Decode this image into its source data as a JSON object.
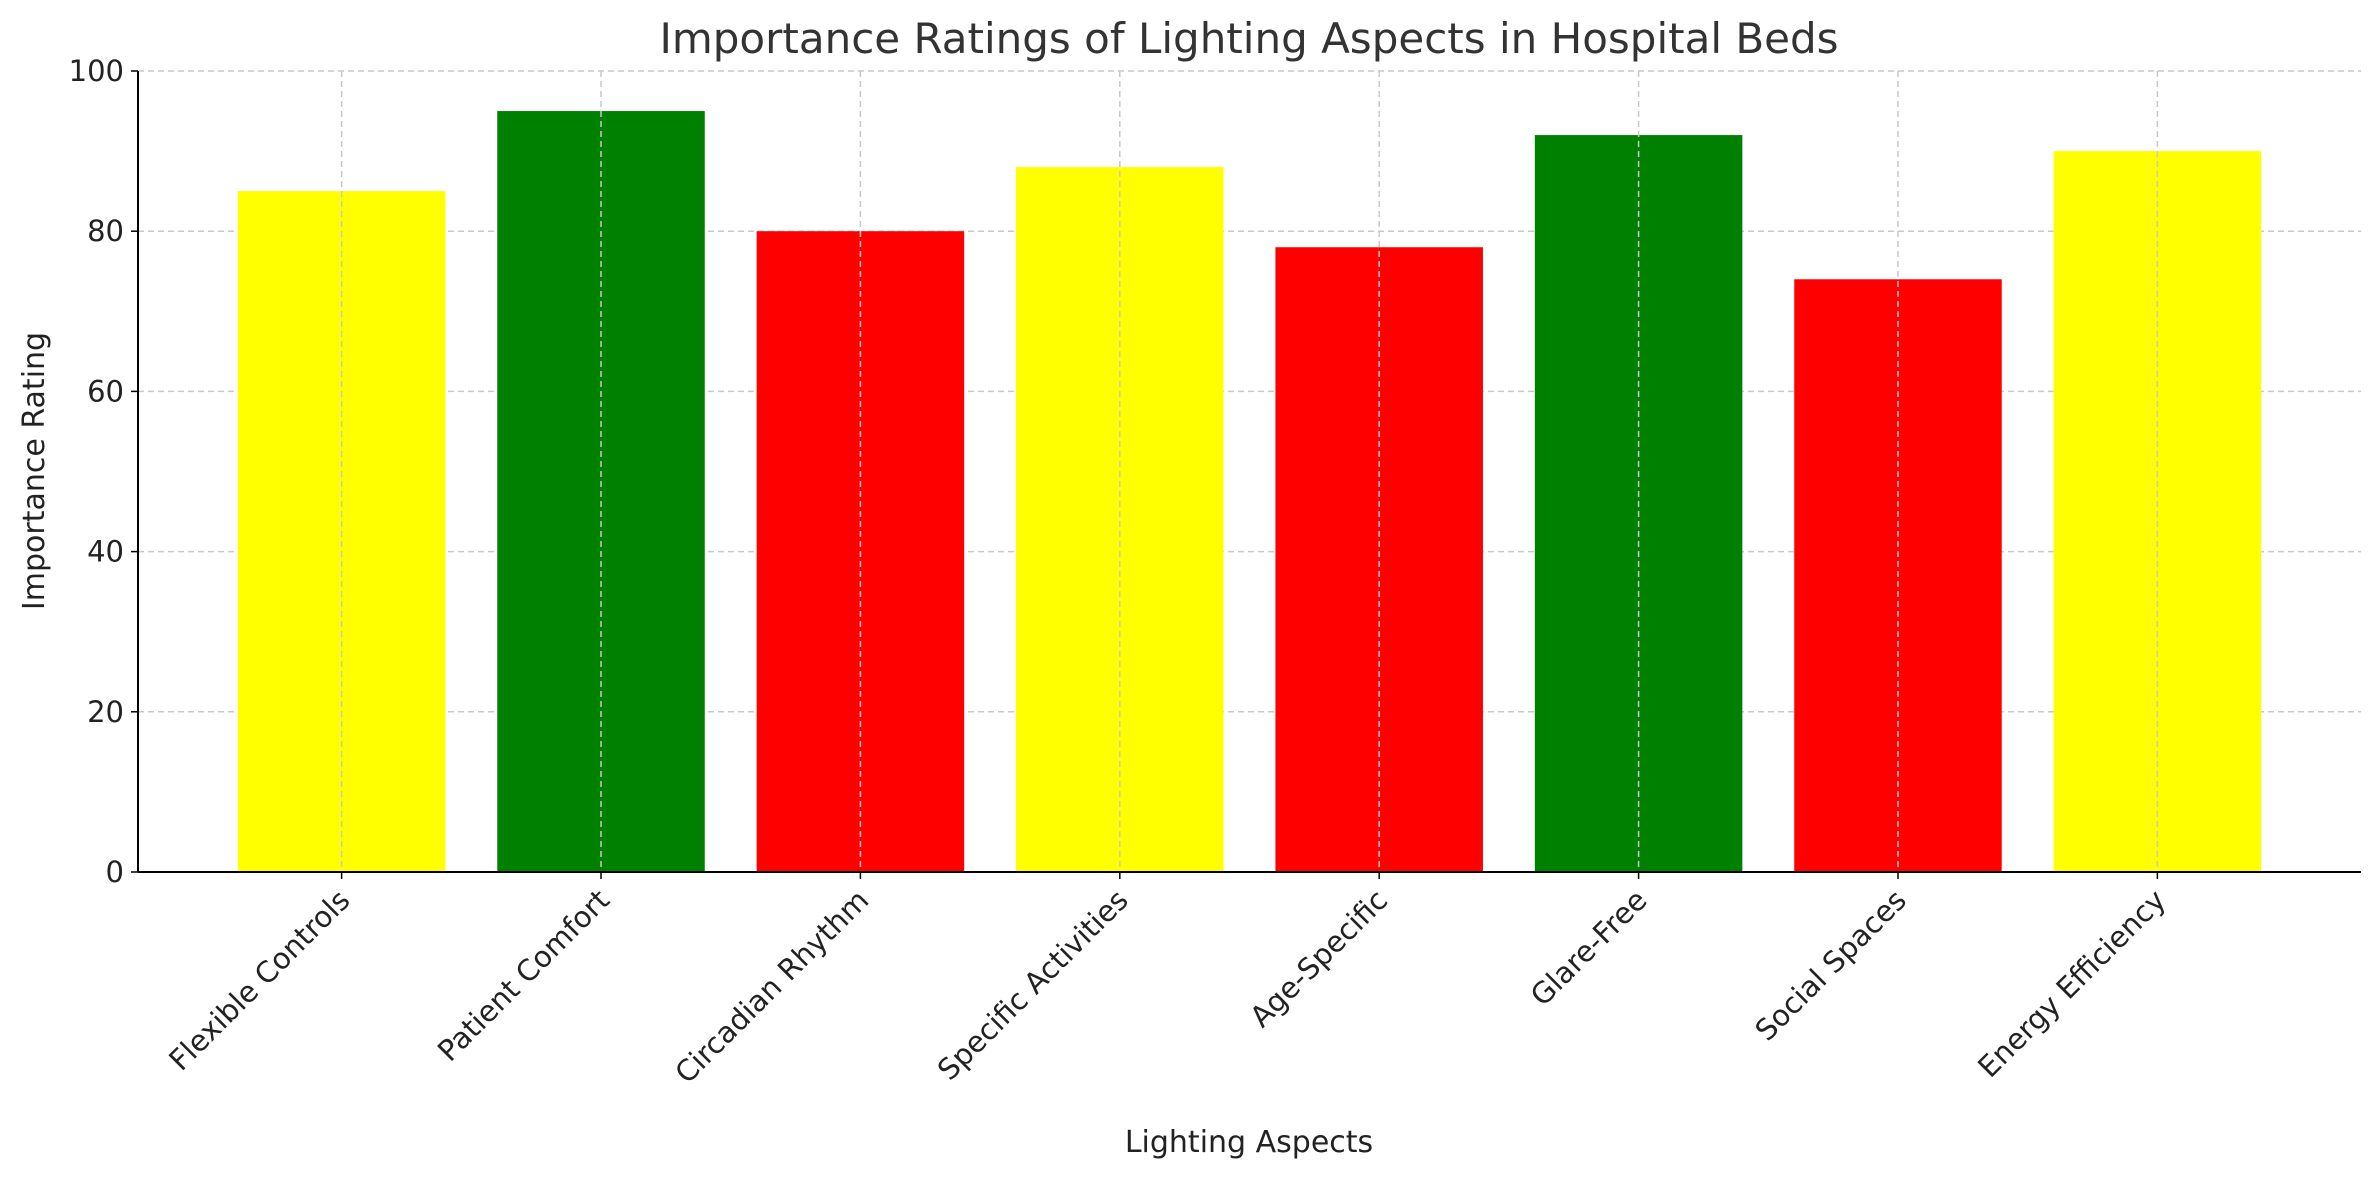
{
  "chart_data": {
    "type": "bar",
    "title": "Importance Ratings of Lighting Aspects in Hospital Beds",
    "xlabel": "Lighting Aspects",
    "ylabel": "Importance Rating",
    "categories": [
      "Flexible Controls",
      "Patient Comfort",
      "Circadian Rhythm",
      "Specific Activities",
      "Age-Specific",
      "Glare-Free",
      "Social Spaces",
      "Energy Efficiency"
    ],
    "values": [
      85,
      95,
      80,
      88,
      78,
      92,
      74,
      90
    ],
    "colors": [
      "#ffff00",
      "#008000",
      "#ff0000",
      "#ffff00",
      "#ff0000",
      "#008000",
      "#ff0000",
      "#ffff00"
    ],
    "ylim": [
      0,
      100
    ],
    "yticks": [
      "0",
      "20",
      "40",
      "60",
      "80",
      "100"
    ],
    "grid": true
  }
}
